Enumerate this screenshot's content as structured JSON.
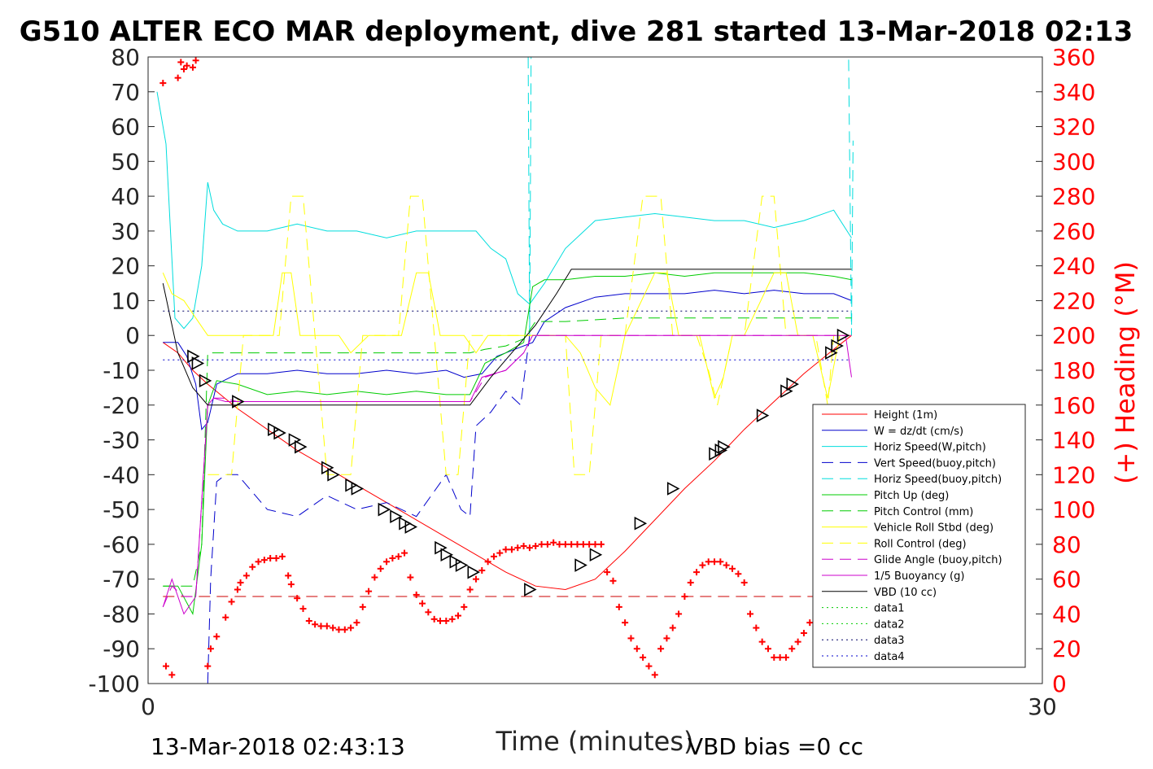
{
  "chart_data": {
    "type": "line",
    "title": "G510 ALTER ECO MAR deployment, dive 281 started 13-Mar-2018 02:13",
    "xlabel": "Time (minutes)",
    "ylabel_right": "(+) Heading (°M)",
    "xlim": [
      0,
      30
    ],
    "ylim": [
      -100,
      80
    ],
    "ylim_right": [
      0,
      360
    ],
    "x_ticks": [
      "0",
      "30"
    ],
    "y_ticks": [
      "80",
      "70",
      "60",
      "50",
      "40",
      "30",
      "20",
      "10",
      "0",
      "-10",
      "-20",
      "-30",
      "-40",
      "-50",
      "-60",
      "-70",
      "-80",
      "-90",
      "-100"
    ],
    "y_right_ticks": [
      "360",
      "340",
      "320",
      "300",
      "280",
      "260",
      "240",
      "220",
      "200",
      "180",
      "160",
      "140",
      "120",
      "100",
      "80",
      "60",
      "40",
      "20",
      "0"
    ],
    "footer_left": "13-Mar-2018 02:43:13",
    "footer_right": "VBD bias =0 cc",
    "legend_position": "lower-right",
    "series": [
      {
        "name": "Height (1m)",
        "color": "#ff0000",
        "style": "solid",
        "x": [
          0.5,
          1.0,
          1.5,
          2.0,
          3.0,
          4.0,
          5.0,
          6.0,
          7.0,
          8.0,
          9.0,
          10.0,
          11.0,
          12.0,
          13.0,
          14.0,
          15.0,
          16.0,
          17.0,
          18.0,
          19.0,
          20.0,
          21.0,
          22.0,
          23.0,
          23.6
        ],
        "y": [
          -2,
          -5,
          -10,
          -14,
          -21,
          -27,
          -33,
          -38,
          -43,
          -48,
          -53,
          -58,
          -63,
          -68,
          -72,
          -73,
          -70,
          -62,
          -53,
          -44,
          -36,
          -27,
          -19,
          -11,
          -4,
          0
        ]
      },
      {
        "name": "W = dz/dt (cm/s)",
        "color": "#0000cc",
        "style": "solid",
        "x": [
          0.5,
          1.0,
          1.3,
          1.6,
          1.8,
          2.0,
          2.3,
          3,
          4,
          5,
          6,
          7,
          8,
          9,
          10,
          10.6,
          11.2,
          11.7,
          12.3,
          12.9,
          13.3,
          14,
          15,
          16,
          17,
          18,
          19,
          20,
          21,
          22,
          23,
          23.6
        ],
        "y": [
          -2,
          -2,
          -6,
          -14,
          -27,
          -25,
          -14,
          -11,
          -11,
          -10,
          -11,
          -11,
          -10,
          -11,
          -10,
          -12,
          -11,
          -6,
          -4,
          -2,
          4,
          8,
          11,
          12,
          12,
          12,
          13,
          12,
          13,
          12,
          12,
          10
        ]
      },
      {
        "name": "Horiz Speed(W,pitch)",
        "color": "#00dddd",
        "style": "solid",
        "x": [
          0.3,
          0.6,
          0.9,
          1.2,
          1.5,
          1.8,
          2.0,
          2.2,
          2.5,
          3,
          4,
          5,
          6,
          7,
          8,
          9,
          10,
          11,
          11.5,
          12.0,
          12.4,
          12.8,
          13.3,
          14,
          15,
          16,
          17,
          18,
          19,
          20,
          21,
          22,
          23,
          23.6
        ],
        "y": [
          70,
          55,
          5,
          2,
          5,
          20,
          44,
          36,
          32,
          30,
          30,
          32,
          30,
          30,
          28,
          30,
          30,
          30,
          25,
          22,
          12,
          9,
          15,
          25,
          33,
          34,
          35,
          34,
          33,
          33,
          31,
          33,
          36,
          28
        ]
      },
      {
        "name": "Vert Speed(buoy,pitch)",
        "color": "#0000cc",
        "style": "dash",
        "x": [
          2.0,
          2.1,
          2.3,
          2.6,
          3,
          4,
          5,
          6,
          7,
          8,
          9,
          10,
          10.5,
          10.8,
          11.0,
          11.5,
          12.0,
          12.5,
          12.8
        ],
        "y": [
          -100,
          -70,
          -42,
          -40,
          -40,
          -50,
          -52,
          -46,
          -50,
          -48,
          -52,
          -40,
          -50,
          -52,
          -26,
          -22,
          -16,
          -20,
          0
        ]
      },
      {
        "name": "Horiz Speed(buoy,pitch)",
        "color": "#00dddd",
        "style": "dash",
        "x": [
          12.75,
          12.8,
          12.85,
          23.5,
          23.6,
          23.65
        ],
        "y": [
          80,
          0,
          80,
          80,
          0,
          56
        ]
      },
      {
        "name": "Pitch Up (deg)",
        "color": "#00cc00",
        "style": "solid",
        "x": [
          0.5,
          1.0,
          1.5,
          1.8,
          2.0,
          2.3,
          3,
          4,
          5,
          6,
          7,
          8,
          9,
          10,
          10.8,
          11.3,
          12.0,
          12.6,
          12.9,
          13.3,
          14,
          15,
          16,
          17,
          18,
          19,
          20,
          21,
          22,
          23,
          23.6
        ],
        "y": [
          -72,
          -72,
          -80,
          -60,
          -20,
          -13,
          -14,
          -17,
          -16,
          -17,
          -16,
          -17,
          -16,
          -17,
          -17,
          -8,
          -5,
          -2,
          14,
          16,
          16,
          17,
          17,
          18,
          17,
          18,
          18,
          18,
          18,
          17,
          16
        ]
      },
      {
        "name": "Pitch Control (mm)",
        "color": "#00cc00",
        "style": "dash",
        "x": [
          0.5,
          1.0,
          1.5,
          1.8,
          2.0,
          2.3,
          3,
          5,
          7,
          9,
          10.8,
          11.3,
          12.0,
          12.6,
          13.0,
          14,
          16,
          18,
          20,
          22,
          23.6
        ],
        "y": [
          -72,
          -72,
          -72,
          -60,
          -5,
          -5,
          -5,
          -5,
          -5,
          -5,
          -5,
          -4,
          -3,
          -1,
          4,
          4,
          5,
          5,
          5,
          5,
          5
        ]
      },
      {
        "name": "Vehicle Roll Stbd (deg)",
        "color": "#ffff00",
        "style": "solid",
        "x": [
          0.5,
          0.8,
          1.2,
          1.6,
          2.0,
          3,
          3.3,
          3.6,
          4.2,
          4.5,
          4.8,
          5.1,
          6,
          6.4,
          6.8,
          7.4,
          7.8,
          8.2,
          8.5,
          9,
          9.4,
          9.8,
          10.2,
          10.6,
          11,
          11.4,
          11.8,
          12.4,
          13,
          13.4,
          14,
          14.5,
          15,
          15.5,
          16,
          17,
          17.4,
          17.8,
          18.5,
          19,
          19.3,
          19.6,
          20,
          21,
          21.4,
          21.8,
          22.3,
          22.8,
          23.2,
          23.6
        ],
        "y": [
          18,
          12,
          10,
          5,
          0,
          0,
          0,
          0,
          0,
          18,
          18,
          0,
          0,
          0,
          -5,
          0,
          0,
          0,
          0,
          18,
          18,
          0,
          0,
          0,
          -5,
          0,
          0,
          0,
          0,
          0,
          0,
          -5,
          -15,
          -20,
          0,
          18,
          18,
          0,
          0,
          -18,
          -12,
          0,
          0,
          18,
          18,
          0,
          0,
          -18,
          0,
          0
        ]
      },
      {
        "name": "Roll Control (deg)",
        "color": "#ffff00",
        "style": "dash",
        "x": [
          2.0,
          2.3,
          2.8,
          3.2,
          3.7,
          4.1,
          4.4,
          4.8,
          5.2,
          5.6,
          6,
          6.4,
          6.8,
          7.2,
          7.6,
          8.0,
          8.4,
          8.8,
          9.2,
          9.6,
          10.0,
          10.4,
          10.8,
          11.2,
          11.6,
          12.4,
          13.0,
          14.0,
          14.3,
          14.8,
          15.2,
          15.6,
          16.0,
          16.6,
          17.2,
          17.6,
          18.0,
          18.4,
          18.8,
          19.1,
          19.6,
          20.0,
          20.6,
          21.0,
          21.4,
          21.8,
          22.4,
          22.8,
          23.0,
          23.6
        ],
        "y": [
          -40,
          -40,
          -40,
          0,
          0,
          0,
          0,
          40,
          40,
          0,
          -40,
          -40,
          -40,
          0,
          0,
          0,
          0,
          40,
          40,
          0,
          -40,
          -40,
          0,
          0,
          0,
          0,
          0,
          0,
          -40,
          -40,
          0,
          0,
          0,
          40,
          40,
          0,
          0,
          0,
          -10,
          -20,
          0,
          0,
          40,
          40,
          0,
          0,
          0,
          -20,
          0,
          0
        ]
      },
      {
        "name": "Glide Angle (buoy,pitch)",
        "color": "#cc00cc",
        "style": "dash",
        "x": [
          0.5,
          0.8,
          1.2,
          1.6,
          2.0,
          2.2,
          2.5,
          3,
          5,
          7,
          9,
          10.8,
          11.3,
          12.0,
          12.6,
          12.9,
          13.2,
          14,
          16,
          18,
          20,
          22,
          23.6
        ],
        "y": [
          -78,
          -72,
          -75,
          -75,
          -20,
          -18,
          -18,
          -19,
          -19,
          -19,
          -19,
          -19,
          -12,
          -10,
          -5,
          0,
          0,
          0,
          0,
          0,
          0,
          0,
          0
        ]
      },
      {
        "name": "1/5 Buoyancy (g)",
        "color": "#cc00cc",
        "style": "solid",
        "x": [
          0.5,
          0.8,
          1.2,
          1.6,
          2.0,
          2.2,
          2.6,
          3,
          5,
          7,
          9,
          10.8,
          11.2,
          12.0,
          12.6,
          12.9,
          13.2,
          14,
          16,
          18,
          20,
          22,
          23.4,
          23.6
        ],
        "y": [
          -78,
          -70,
          -80,
          -75,
          -20,
          -18,
          -19,
          -19,
          -19,
          -19,
          -19,
          -19,
          -12,
          -10,
          -5,
          0,
          0,
          0,
          0,
          0,
          0,
          0,
          0,
          -12
        ]
      },
      {
        "name": "VBD (10 cc)",
        "color": "#000000",
        "style": "solid",
        "x": [
          0.5,
          1.0,
          1.5,
          2.0,
          2.3,
          3,
          5,
          7,
          9,
          10.8,
          11.5,
          12.3,
          13.0,
          13.7,
          14.2,
          15,
          17,
          19,
          21,
          23.6
        ],
        "y": [
          15,
          -5,
          -15,
          -20,
          -20,
          -20,
          -20,
          -20,
          -20,
          -20,
          -12,
          -4,
          3,
          12,
          19,
          19,
          19,
          19,
          19,
          19
        ]
      },
      {
        "name": "data1",
        "color": "#00cc00",
        "style": "dot",
        "x": [],
        "y": []
      },
      {
        "name": "data2",
        "color": "#00cc00",
        "style": "dot",
        "x": [],
        "y": []
      },
      {
        "name": "data3",
        "color": "#000066",
        "style": "dot",
        "x": [
          0.5,
          23.6
        ],
        "y": [
          7,
          7
        ]
      },
      {
        "name": "data4",
        "color": "#0000cc",
        "style": "dot",
        "x": [
          0.5,
          23.6
        ],
        "y": [
          -7,
          -7
        ]
      }
    ],
    "reference_lines": [
      {
        "color": "#cc0000",
        "style": "dash",
        "y": -75,
        "x": [
          0.5,
          23.6
        ]
      }
    ],
    "height_markers": {
      "x": [
        1.5,
        1.65,
        1.9,
        3.0,
        4.2,
        4.4,
        4.9,
        5.1,
        6.0,
        6.2,
        6.8,
        7.0,
        7.9,
        8.3,
        8.6,
        8.8,
        9.8,
        10.0,
        10.3,
        10.5,
        10.9,
        12.8,
        14.5,
        15.0,
        16.5,
        17.6,
        19.0,
        19.2,
        19.3,
        20.6,
        21.4,
        21.6,
        22.9,
        23.1,
        23.3
      ],
      "y": [
        -6,
        -8,
        -13,
        -19,
        -27,
        -28,
        -30,
        -32,
        -38,
        -40,
        -43,
        -44,
        -50,
        -52,
        -54,
        -55,
        -61,
        -63,
        -65,
        -66,
        -68,
        -73,
        -66,
        -63,
        -54,
        -44,
        -34,
        -33,
        -32,
        -23,
        -16,
        -14,
        -5,
        -3,
        0
      ]
    },
    "heading": {
      "name": "(+) Heading (°M)",
      "color": "#ff0000",
      "marker": "+",
      "x": [
        0.5,
        0.6,
        0.8,
        1.0,
        1.1,
        1.2,
        1.3,
        1.5,
        1.6,
        2.0,
        2.1,
        2.3,
        2.6,
        2.8,
        3.0,
        3.1,
        3.3,
        3.5,
        3.7,
        3.9,
        4.1,
        4.3,
        4.5,
        4.7,
        4.8,
        5.0,
        5.2,
        5.4,
        5.6,
        5.8,
        6.0,
        6.2,
        6.4,
        6.6,
        6.8,
        7.0,
        7.2,
        7.4,
        7.6,
        7.8,
        8.0,
        8.2,
        8.4,
        8.6,
        8.8,
        9.0,
        9.2,
        9.4,
        9.6,
        9.8,
        10.0,
        10.2,
        10.4,
        10.6,
        10.8,
        11.0,
        11.2,
        11.4,
        11.6,
        11.8,
        12.0,
        12.2,
        12.4,
        12.6,
        12.8,
        13.0,
        13.2,
        13.4,
        13.6,
        13.8,
        14.0,
        14.2,
        14.4,
        14.6,
        14.8,
        15.0,
        15.2,
        15.4,
        15.6,
        15.8,
        16.0,
        16.2,
        16.4,
        16.6,
        16.8,
        17.0,
        17.2,
        17.4,
        17.6,
        17.8,
        18.0,
        18.2,
        18.4,
        18.6,
        18.8,
        19.0,
        19.2,
        19.4,
        19.6,
        19.8,
        20.0,
        20.2,
        20.4,
        20.6,
        20.8,
        21.0,
        21.2,
        21.4,
        21.6,
        21.8,
        22.0,
        22.2,
        22.4
      ],
      "y": [
        345,
        10,
        5,
        348,
        357,
        353,
        355,
        354,
        358,
        10,
        20,
        27,
        38,
        47,
        54,
        58,
        62,
        67,
        70,
        71,
        72,
        72,
        73,
        62,
        57,
        49,
        43,
        36,
        34,
        33,
        33,
        32,
        31,
        31,
        32,
        35,
        44,
        53,
        61,
        66,
        70,
        72,
        73,
        75,
        61,
        51,
        46,
        41,
        37,
        36,
        36,
        37,
        39,
        44,
        54,
        60,
        65,
        70,
        73,
        75,
        77,
        77,
        78,
        79,
        78,
        79,
        80,
        80,
        81,
        80,
        80,
        80,
        80,
        80,
        80,
        80,
        80,
        64,
        59,
        44,
        35,
        26,
        20,
        15,
        10,
        5,
        20,
        26,
        32,
        40,
        50,
        58,
        64,
        68,
        70,
        70,
        70,
        68,
        66,
        63,
        58,
        40,
        32,
        24,
        20,
        15,
        15,
        15,
        20,
        24,
        29,
        35,
        40
      ]
    }
  }
}
